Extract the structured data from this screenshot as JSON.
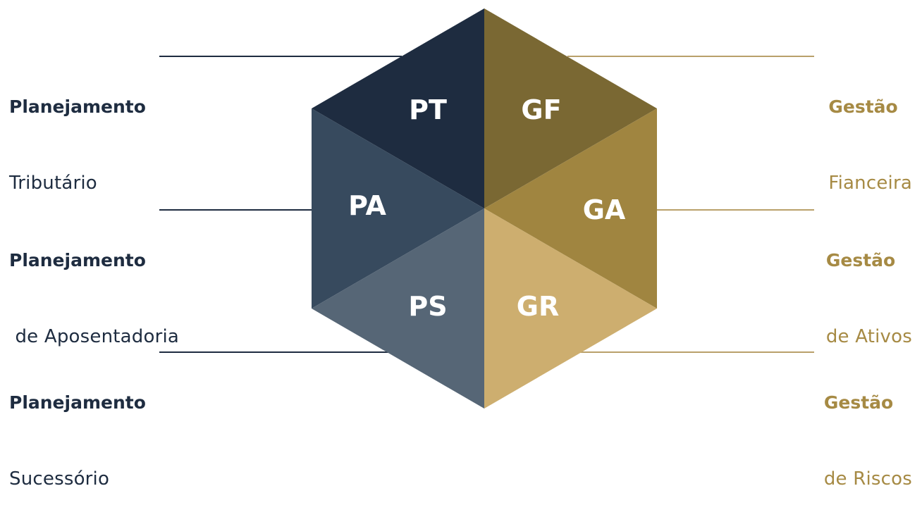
{
  "colors": {
    "navy_dark": "#1e2c40",
    "navy_mid": "#374a5e",
    "navy_light": "#566676",
    "gold_dark": "#7a6833",
    "gold_mid": "#a08540",
    "gold_light": "#cdae6f",
    "left_line": "#1e2c40",
    "right_line": "#b9a06a"
  },
  "segments": {
    "pt": {
      "code": "PT"
    },
    "pa": {
      "code": "PA"
    },
    "ps": {
      "code": "PS"
    },
    "gf": {
      "code": "GF"
    },
    "ga": {
      "code": "GA"
    },
    "gr": {
      "code": "GR"
    }
  },
  "labels": {
    "pt": {
      "title": "Planejamento",
      "sub": "Tributário"
    },
    "pa": {
      "title": "Planejamento",
      "sub": " de Aposentadoria"
    },
    "ps": {
      "title": "Planejamento",
      "sub": "Sucessório"
    },
    "gf": {
      "title": "Gestão",
      "sub": "Fianceira"
    },
    "ga": {
      "title": "Gestão",
      "sub": "de Ativos"
    },
    "gr": {
      "title": "Gestão",
      "sub": "de Riscos"
    }
  }
}
